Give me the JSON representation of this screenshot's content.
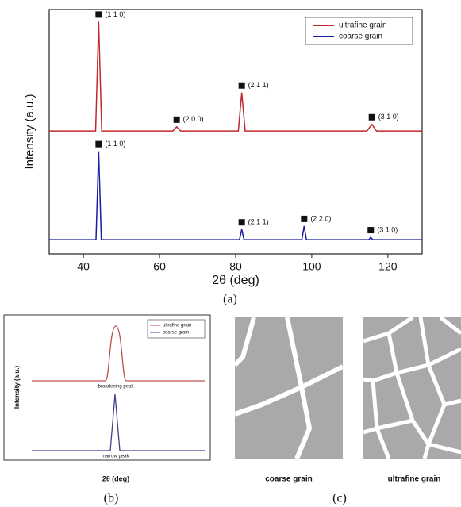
{
  "chart_data": {
    "type": "line",
    "ylabel": "Intensity (a.u.)",
    "xlabel": "2θ (deg)",
    "caption": "(a)",
    "xlim": [
      31,
      129
    ],
    "xticks": [
      40,
      60,
      80,
      100,
      120
    ],
    "ylim": [
      0,
      100
    ],
    "legend": "upper right",
    "series": [
      {
        "name": "ultrafine grain",
        "color": "#c0282d",
        "x": [
          31,
          43.2,
          44,
          44.8,
          63.5,
          64.5,
          65.5,
          80.7,
          81.6,
          82.5,
          114.5,
          115.8,
          117,
          129
        ],
        "values": [
          50.3,
          50.3,
          95,
          50.3,
          50.3,
          52,
          50.3,
          50.3,
          66,
          50.3,
          50.3,
          53,
          50.3,
          50.3
        ],
        "peak_labels": [
          "(1 1 0)",
          "(2 0 0)",
          "(2 1 1)",
          "(3 1 0)"
        ]
      },
      {
        "name": "coarse grain",
        "color": "#1c1ca0",
        "x": [
          31,
          43.3,
          44,
          44.7,
          81,
          81.6,
          82.2,
          97.4,
          98,
          98.6,
          115,
          115.5,
          116,
          129
        ],
        "values": [
          5.8,
          5.8,
          42,
          5.8,
          5.8,
          10,
          5.8,
          5.8,
          11.4,
          5.8,
          5.8,
          6.8,
          5.8,
          5.8
        ],
        "peak_labels": [
          "(1 1 0)",
          "(2 1 1)",
          "(2 2 0)",
          "(3 1 0)"
        ]
      }
    ]
  },
  "panel_b": {
    "ylabel": "Intensity (a.u.)",
    "legend": [
      "ultrafine grain",
      "coarse grain"
    ],
    "broad_label": "broadening peak",
    "narrow_label": "narrow peak",
    "xlabel": "2θ (deg)",
    "caption": "(b)"
  },
  "panel_c": {
    "left_label": "coarse grain",
    "right_label": "ultrafine grain",
    "caption": "(c)"
  }
}
